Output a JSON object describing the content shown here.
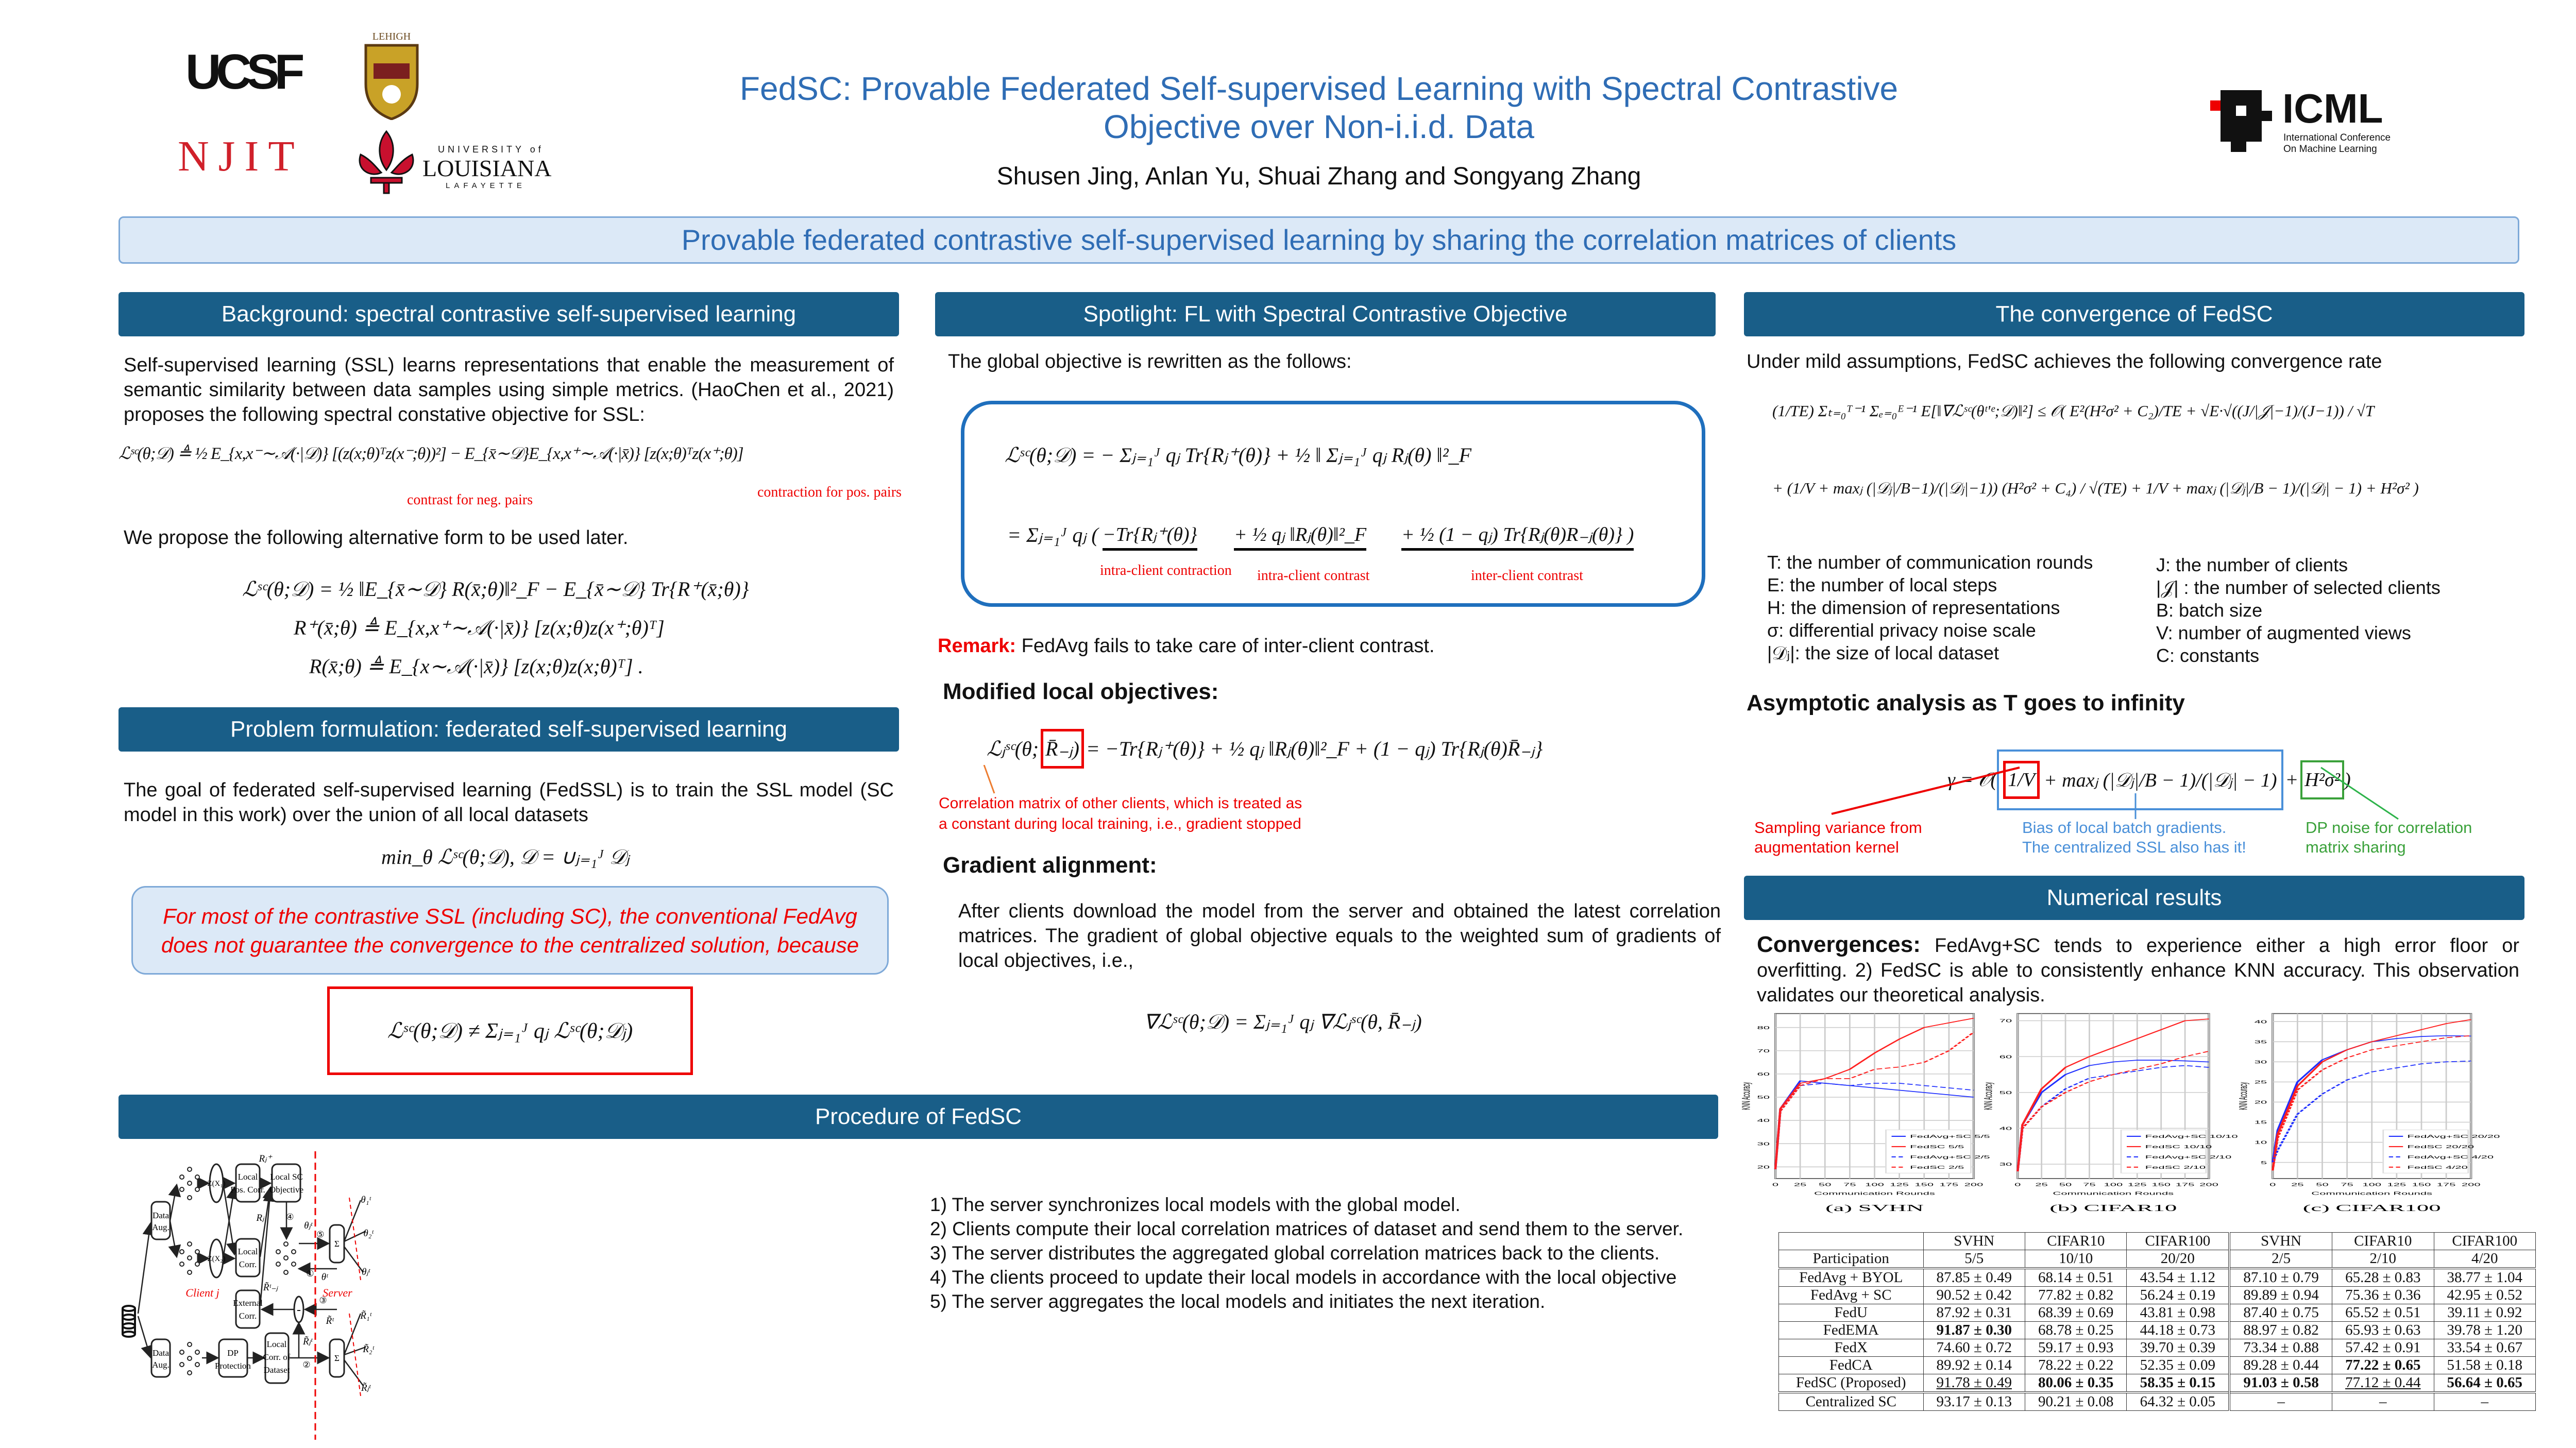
{
  "logos": {
    "ucsf": "UCSF",
    "lehigh": "LEHIGH",
    "njit": "NJIT",
    "louisiana_top": "UNIVERSITY of",
    "louisiana": "LOUISIANA",
    "louisiana_bottom": "LAFAYETTE",
    "icml": "ICML",
    "icml_sub1": "International Conference",
    "icml_sub2": "On Machine Learning"
  },
  "header": {
    "title_line1": "FedSC: Provable Federated Self-supervised Learning with Spectral Contrastive",
    "title_line2": "Objective over Non-i.i.d. Data",
    "authors": "Shusen Jing, Anlan Yu, Shuai Zhang and Songyang Zhang"
  },
  "banner": "Provable federated contrastive self-supervised learning by sharing the correlation matrices of clients",
  "colors": {
    "header_bg": "#195e88",
    "title_blue": "#2f6db5",
    "banner_bg": "#dce9f7",
    "accent_red": "#e00000",
    "accent_green": "#3aa13a",
    "accent_blue": "#4a90d9"
  },
  "background": {
    "heading": "Background: spectral contrastive self-supervised learning",
    "para": "Self-supervised learning (SSL) learns representations that enable the measurement of semantic similarity between data samples using simple metrics. (HaoChen et al., 2021) proposes the following spectral constative objective for SSL:",
    "eq1": "ℒˢᶜ(θ;𝒟) ≜ ½ E_{x,x⁻∼𝒜(·|𝒟)} [(z(x;θ)ᵀz(x⁻;θ))²] − E_{x̄∼𝒟}E_{x,x⁺∼𝒜(·|x̄)} [z(x;θ)ᵀz(x⁺;θ)]",
    "ann_neg": "contrast for neg. pairs",
    "ann_pos": "contraction for pos. pairs",
    "para2": "We propose the following alternative form to be used later.",
    "eq2": "ℒˢᶜ(θ;𝒟) = ½ ‖E_{x̄∼𝒟} R(x̄;θ)‖²_F − E_{x̄∼𝒟} Tr{R⁺(x̄;θ)}",
    "eq3": "R⁺(x̄;θ) ≜ E_{x,x⁺∼𝒜(·|x̄)} [z(x;θ)z(x⁺;θ)ᵀ]",
    "eq4": "R(x̄;θ) ≜ E_{x∼𝒜(·|x̄)} [z(x;θ)z(x;θ)ᵀ] ."
  },
  "problem": {
    "heading": "Problem formulation: federated self-supervised learning",
    "para": "The goal of federated self-supervised learning (FedSSL) is to train the SSL model (SC model in this work) over the union of all local datasets",
    "eq": "min_θ ℒˢᶜ(θ;𝒟), 𝒟 = ∪ⱼ₌₁ᴶ 𝒟ⱼ",
    "warning": "For most of the contrastive SSL (including SC), the conventional FedAvg does not guarantee the convergence to the centralized solution, because",
    "eq_box": "ℒˢᶜ(θ;𝒟) ≠ Σⱼ₌₁ᴶ qⱼ ℒˢᶜ(θ;𝒟ⱼ)"
  },
  "spotlight": {
    "heading": "Spotlight: FL with Spectral Contrastive Objective",
    "intro": "The global objective is rewritten as the follows:",
    "eq1": "ℒˢᶜ(θ;𝒟) = − Σⱼ₌₁ᴶ qⱼ Tr{Rⱼ⁺(θ)} + ½ ‖ Σⱼ₌₁ᴶ qⱼ Rⱼ(θ) ‖²_F",
    "eq2a": "= Σⱼ₌₁ᴶ qⱼ (",
    "eq2b": "−Tr{Rⱼ⁺(θ)}",
    "eq2c": "+ ½ qⱼ ‖Rⱼ(θ)‖²_F",
    "eq2d": "+ ½ (1 − qⱼ) Tr{Rⱼ(θ)R₋ⱼ(θ)} )",
    "ann1": "intra-client contraction",
    "ann2": "intra-client contrast",
    "ann3": "inter-client contrast",
    "remark_label": "Remark:",
    "remark": "FedAvg fails to take care of inter-client contrast.",
    "mod_heading": "Modified local objectives:",
    "mod_eq_lhs": "ℒⱼˢᶜ(θ;",
    "mod_eq_box": "R̄₋ⱼ)",
    "mod_eq_rhs": "= −Tr{Rⱼ⁺(θ)} + ½ qⱼ ‖Rⱼ(θ)‖²_F + (1 − qⱼ) Tr{Rⱼ(θ)R̄₋ⱼ}",
    "mod_ann1": "Correlation matrix of other clients, which is treated as",
    "mod_ann2": "a constant during  local training, i.e., gradient stopped",
    "grad_heading": "Gradient alignment:",
    "grad_para": "After clients download the model from the server and obtained the latest correlation matrices. The gradient of global objective equals to the weighted sum of gradients of local objectives, i.e.,",
    "grad_eq": "∇ℒˢᶜ(θ;𝒟) = Σⱼ₌₁ᴶ qⱼ ∇ℒⱼˢᶜ(θ, R̄₋ⱼ)"
  },
  "procedure": {
    "heading": "Procedure of FedSC",
    "steps": [
      "1)  The server synchronizes local models with the global model.",
      "2)  Clients compute their local correlation matrices of dataset and send them to the server.",
      "3)  The server distributes the aggregated global correlation matrices back to the clients.",
      "4)  The clients proceed to update their local models in accordance with the local objective",
      "5)  The server aggregates the local models and initiates the next iteration."
    ],
    "diagram": {
      "data_aug": [
        "Data",
        "Aug."
      ],
      "z1": "Z(X₁)",
      "z2": "Z(X₂)",
      "local_pos": [
        "Local",
        "Pos. Corr."
      ],
      "local_sc": [
        "Local SC",
        "Objective"
      ],
      "local_corr": [
        "Local",
        "Corr."
      ],
      "external": [
        "External",
        "Corr."
      ],
      "dp": [
        "DP",
        "Protection"
      ],
      "local_ds": [
        "Local",
        "Corr. of",
        "Dataset"
      ],
      "client": "Client j",
      "server": "Server",
      "sigma": "Σ",
      "minus": "-",
      "rj_plus": "Rⱼ⁺",
      "rj": "Rⱼ",
      "r_minus_j": "R̃ᵗ₋ⱼ",
      "theta_j": "θⱼᵗ",
      "theta": "θᵗ",
      "r_t": "R̃ᵗ",
      "rj_t": "R̃ⱼᵗ",
      "thetas": [
        "θ₁ᵗ",
        "θ₂ᵗ",
        "θⱼᵗ"
      ],
      "rs": [
        "R̃₁ᵗ",
        "R̃₂ᵗ",
        "R̃ⱼᵗ"
      ],
      "steps": [
        "①",
        "②",
        "③",
        "④",
        "⑤"
      ]
    }
  },
  "convergence": {
    "heading": "The convergence of FedSC",
    "intro": "Under mild assumptions, FedSC achieves the following convergence rate",
    "eq1": "(1/TE) Σₜ₌₀ᵀ⁻¹ Σₑ₌₀ᴱ⁻¹ E[‖∇ℒˢᶜ(θᵗ'ᵉ;𝒟)‖²] ≤ 𝒪( E²(H²σ² + C₂)/TE + √E·√((J/|𝒥|−1)/(J−1)) / √T",
    "eq2": "+ (1/V + maxⱼ (|𝒟ⱼ|/B−1)/(|𝒟ⱼ|−1)) (H²σ² + C₄) / √(TE) + 1/V + maxⱼ (|𝒟ⱼ|/B − 1)/(|𝒟ⱼ| − 1) + H²σ² )",
    "defs_left": [
      "T: the number of communication rounds",
      "E: the number of local steps",
      "H: the dimension of representations",
      "σ: differential privacy noise scale",
      "|𝒟ⱼ|: the size of local dataset"
    ],
    "defs_right": [
      "J: the number of clients",
      "|𝒥| : the number of selected  clients",
      "B: batch size",
      "V: number of augmented views",
      "C: constants"
    ],
    "asym_heading": "Asymptotic analysis as T goes to infinity",
    "gamma_lhs": "γ = 𝒪(",
    "gamma_v": "1/V",
    "gamma_mid": "+ maxⱼ (|𝒟ⱼ|/B − 1)/(|𝒟ⱼ| − 1)",
    "gamma_plus": "+",
    "gamma_h": "H²σ²",
    "gamma_end": ")",
    "ann_red": [
      "Sampling variance from",
      "augmentation kernel"
    ],
    "ann_blue": [
      "Bias  of  local  batch  gradients.",
      "The centralized SSL also has it!"
    ],
    "ann_green": [
      "DP noise for correlation",
      "matrix sharing"
    ]
  },
  "results": {
    "heading": "Numerical results",
    "conv_label": "Convergences:",
    "conv_text": "FedAvg+SC tends to experience either a high error floor or overfitting. 2) FedSC is able to consistently enhance KNN accuracy. This observation validates our theoretical analysis.",
    "table": {
      "header": [
        "",
        "SVHN",
        "CIFAR10",
        "CIFAR100",
        "SVHN",
        "CIFAR10",
        "CIFAR100"
      ],
      "participation": [
        "Participation",
        "5/5",
        "10/10",
        "20/20",
        "2/5",
        "2/10",
        "4/20"
      ],
      "rows": [
        {
          "method": "FedAvg + BYOL",
          "cells": [
            "87.85 ± 0.49",
            "68.14 ± 0.51",
            "43.54 ± 1.12",
            "87.10 ± 0.79",
            "65.28 ± 0.83",
            "38.77 ± 1.04"
          ],
          "bold": [],
          "under": []
        },
        {
          "method": "FedAvg + SC",
          "cells": [
            "90.52 ± 0.42",
            "77.82 ± 0.82",
            "56.24 ± 0.19",
            "89.89 ± 0.94",
            "75.36 ± 0.36",
            "42.95 ± 0.52"
          ],
          "bold": [],
          "under": []
        },
        {
          "method": "FedU",
          "cells": [
            "87.92 ± 0.31",
            "68.39 ± 0.69",
            "43.81 ± 0.98",
            "87.40 ± 0.75",
            "65.52 ± 0.51",
            "39.11 ± 0.92"
          ],
          "bold": [],
          "under": []
        },
        {
          "method": "FedEMA",
          "cells": [
            "91.87 ± 0.30",
            "68.78 ± 0.25",
            "44.18 ± 0.73",
            "88.97 ± 0.82",
            "65.93 ± 0.63",
            "39.78 ± 1.20"
          ],
          "bold": [
            0
          ],
          "under": []
        },
        {
          "method": "FedX",
          "cells": [
            "74.60 ± 0.72",
            "59.17 ± 0.93",
            "39.70 ± 0.39",
            "73.34 ± 0.88",
            "57.42 ± 0.91",
            "33.54 ± 0.67"
          ],
          "bold": [],
          "under": []
        },
        {
          "method": "FedCA",
          "cells": [
            "89.92 ± 0.14",
            "78.22 ± 0.22",
            "52.35 ± 0.09",
            "89.28 ± 0.44",
            "77.22 ± 0.65",
            "51.58 ± 0.18"
          ],
          "bold": [
            4
          ],
          "under": []
        },
        {
          "method": "FedSC (Proposed)",
          "cells": [
            "91.78 ± 0.49",
            "80.06 ± 0.35",
            "58.35 ± 0.15",
            "91.03 ± 0.58",
            "77.12 ± 0.44",
            "56.64 ± 0.65"
          ],
          "bold": [
            1,
            2,
            3,
            5
          ],
          "under": [
            0,
            4
          ]
        },
        {
          "method": "Centralized SC",
          "cells": [
            "93.17 ± 0.13",
            "90.21 ± 0.08",
            "64.32 ± 0.05",
            "–",
            "–",
            "–"
          ],
          "bold": [],
          "under": []
        }
      ]
    }
  },
  "chart_data": [
    {
      "type": "line",
      "caption": "(a) SVHN",
      "xlabel": "Communication Rounds",
      "ylabel": "KNN Accuracy",
      "xlim": [
        0,
        200
      ],
      "ylim": [
        15,
        86
      ],
      "xticks": [
        0,
        25,
        50,
        75,
        100,
        125,
        150,
        175,
        200
      ],
      "yticks": [
        20,
        30,
        40,
        50,
        60,
        70,
        80
      ],
      "grid": true,
      "legend": "bottom-right",
      "x": [
        0,
        5,
        25,
        50,
        75,
        100,
        125,
        150,
        175,
        200
      ],
      "series": [
        {
          "name": "FedAvg+SC 5/5",
          "color": "#1f2fff",
          "dash": false,
          "values": [
            19,
            45,
            57,
            56,
            55,
            54,
            53,
            52,
            51,
            50
          ]
        },
        {
          "name": "FedSC 5/5",
          "color": "#ff2020",
          "dash": false,
          "values": [
            19,
            45,
            56,
            58,
            62,
            69,
            75,
            80,
            82,
            84
          ]
        },
        {
          "name": "FedAvg+SC 2/5",
          "color": "#1f2fff",
          "dash": true,
          "values": [
            19,
            44,
            55,
            56,
            55,
            56,
            56,
            55,
            54,
            53
          ]
        },
        {
          "name": "FedSC 2/5",
          "color": "#ff2020",
          "dash": true,
          "values": [
            19,
            44,
            55,
            58,
            58,
            62,
            63,
            65,
            70,
            78
          ]
        }
      ]
    },
    {
      "type": "line",
      "caption": "(b) CIFAR10",
      "xlabel": "Communication Rounds",
      "ylabel": "KNN Accuracy",
      "xlim": [
        0,
        200
      ],
      "ylim": [
        26,
        72
      ],
      "xticks": [
        0,
        25,
        50,
        75,
        100,
        125,
        150,
        175,
        200
      ],
      "yticks": [
        30,
        40,
        50,
        60,
        70
      ],
      "grid": true,
      "legend": "bottom-right",
      "x": [
        0,
        5,
        25,
        50,
        75,
        100,
        125,
        150,
        175,
        200
      ],
      "series": [
        {
          "name": "FedAvg+SC 10/10",
          "color": "#1f2fff",
          "dash": false,
          "values": [
            28,
            41,
            50,
            55,
            57.5,
            58.5,
            59,
            59,
            58.8,
            58.5
          ]
        },
        {
          "name": "FedSC 10/10",
          "color": "#ff2020",
          "dash": false,
          "values": [
            28,
            41,
            51,
            57,
            60,
            62.5,
            65,
            67.5,
            70,
            70.5
          ]
        },
        {
          "name": "FedAvg+SC 2/10",
          "color": "#1f2fff",
          "dash": true,
          "values": [
            28,
            40,
            46,
            51,
            54,
            55,
            56,
            57,
            57.5,
            57
          ]
        },
        {
          "name": "FedSC 2/10",
          "color": "#ff2020",
          "dash": true,
          "values": [
            28,
            40,
            46,
            50,
            53,
            55,
            56.5,
            58,
            60,
            61.5
          ]
        }
      ]
    },
    {
      "type": "line",
      "caption": "(c) CIFAR100",
      "xlabel": "Communication Rounds",
      "ylabel": "KNN Accuracy",
      "xlim": [
        0,
        200
      ],
      "ylim": [
        1,
        42
      ],
      "xticks": [
        0,
        25,
        50,
        75,
        100,
        125,
        150,
        175,
        200
      ],
      "yticks": [
        5,
        10,
        15,
        20,
        25,
        30,
        35,
        40
      ],
      "grid": true,
      "legend": "bottom-right",
      "x": [
        0,
        5,
        25,
        50,
        75,
        100,
        125,
        150,
        175,
        200
      ],
      "series": [
        {
          "name": "FedAvg+SC 20/20",
          "color": "#1f2fff",
          "dash": false,
          "values": [
            5,
            13,
            25,
            30.5,
            33,
            35,
            35.8,
            36.3,
            36.5,
            36.4
          ]
        },
        {
          "name": "FedSC 20/20",
          "color": "#ff2020",
          "dash": false,
          "values": [
            3,
            12,
            24,
            30,
            33,
            35,
            36.5,
            38,
            39.5,
            40.5
          ]
        },
        {
          "name": "FedAvg+SC 4/20",
          "color": "#1f2fff",
          "dash": true,
          "values": [
            5,
            8,
            17,
            22,
            25.5,
            27.5,
            28.5,
            29.5,
            30,
            30.2
          ]
        },
        {
          "name": "FedSC 4/20",
          "color": "#ff2020",
          "dash": true,
          "values": [
            3,
            11,
            23,
            28,
            31,
            33,
            34,
            35,
            36,
            36.5
          ]
        }
      ]
    }
  ]
}
